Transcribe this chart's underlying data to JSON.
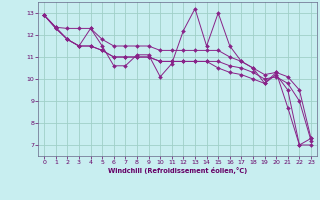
{
  "title": "",
  "xlabel": "Windchill (Refroidissement éolien,°C)",
  "ylabel": "",
  "background_color": "#c8eef0",
  "grid_color": "#a0d0c8",
  "line_color": "#882288",
  "xlim": [
    -0.5,
    23.5
  ],
  "ylim": [
    6.5,
    13.5
  ],
  "xticks": [
    0,
    1,
    2,
    3,
    4,
    5,
    6,
    7,
    8,
    9,
    10,
    11,
    12,
    13,
    14,
    15,
    16,
    17,
    18,
    19,
    20,
    21,
    22,
    23
  ],
  "yticks": [
    7,
    8,
    9,
    10,
    11,
    12,
    13
  ],
  "lines": [
    {
      "x": [
        0,
        1,
        2,
        3,
        4,
        5,
        6,
        7,
        8,
        9,
        10,
        11,
        12,
        13,
        14,
        15,
        16,
        17,
        18,
        19,
        20,
        21,
        22,
        23
      ],
      "y": [
        12.9,
        12.35,
        11.8,
        11.5,
        12.3,
        11.5,
        10.6,
        10.6,
        11.1,
        11.1,
        10.1,
        10.7,
        12.2,
        13.2,
        11.5,
        13.0,
        11.5,
        10.8,
        10.5,
        9.8,
        10.3,
        8.7,
        7.0,
        7.3
      ]
    },
    {
      "x": [
        0,
        1,
        2,
        3,
        4,
        5,
        6,
        7,
        8,
        9,
        10,
        11,
        12,
        13,
        14,
        15,
        16,
        17,
        18,
        19,
        20,
        21,
        22,
        23
      ],
      "y": [
        12.9,
        12.35,
        12.3,
        12.3,
        12.3,
        11.8,
        11.5,
        11.5,
        11.5,
        11.5,
        11.3,
        11.3,
        11.3,
        11.3,
        11.3,
        11.3,
        11.0,
        10.8,
        10.5,
        10.2,
        10.3,
        10.1,
        9.5,
        7.3
      ]
    },
    {
      "x": [
        0,
        1,
        2,
        3,
        4,
        5,
        6,
        7,
        8,
        9,
        10,
        11,
        12,
        13,
        14,
        15,
        16,
        17,
        18,
        19,
        20,
        21,
        22,
        23
      ],
      "y": [
        12.9,
        12.3,
        11.8,
        11.5,
        11.5,
        11.3,
        11.0,
        11.0,
        11.0,
        11.0,
        10.8,
        10.8,
        10.8,
        10.8,
        10.8,
        10.8,
        10.6,
        10.5,
        10.3,
        10.0,
        10.1,
        9.8,
        9.0,
        7.2
      ]
    },
    {
      "x": [
        0,
        1,
        2,
        3,
        4,
        5,
        6,
        7,
        8,
        9,
        10,
        11,
        12,
        13,
        14,
        15,
        16,
        17,
        18,
        19,
        20,
        21,
        22,
        23
      ],
      "y": [
        12.9,
        12.3,
        11.8,
        11.5,
        11.5,
        11.3,
        11.0,
        11.0,
        11.0,
        11.0,
        10.8,
        10.8,
        10.8,
        10.8,
        10.8,
        10.5,
        10.3,
        10.2,
        10.0,
        9.8,
        10.2,
        9.5,
        7.0,
        7.0
      ]
    }
  ]
}
